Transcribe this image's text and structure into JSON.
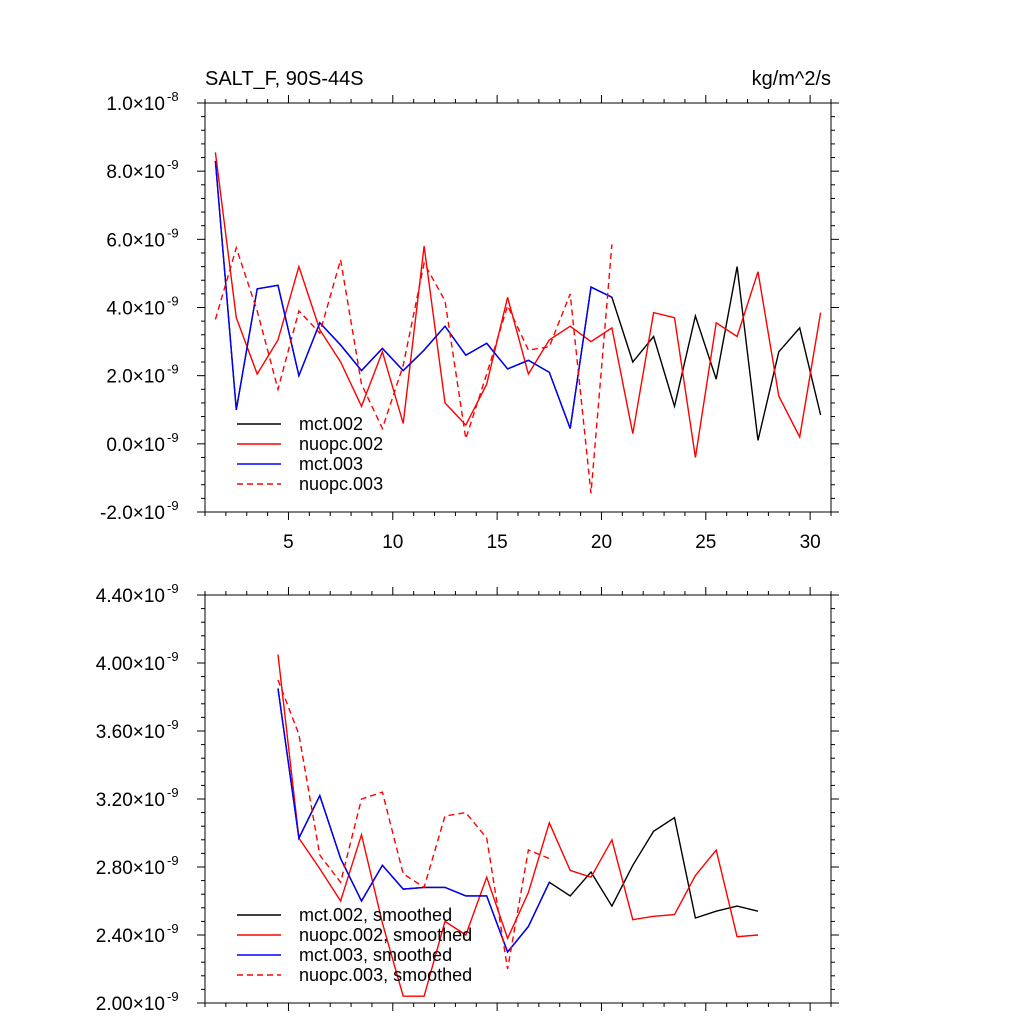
{
  "chart_data": [
    {
      "type": "line",
      "title": "SALT_F, 90S-44S",
      "units": "kg/m^2/s",
      "xlabel": "",
      "ylabel": "",
      "xlim": [
        1,
        31
      ],
      "ylim": [
        -2e-09,
        1e-08
      ],
      "xticks": [
        5,
        10,
        15,
        20,
        25,
        30
      ],
      "ytick_labels": [
        {
          "value": -2e-09,
          "mantissa": "-2.0",
          "exponent": "-9"
        },
        {
          "value": 0,
          "mantissa": "0.0",
          "exponent": "-9"
        },
        {
          "value": 2e-09,
          "mantissa": "2.0",
          "exponent": "-9"
        },
        {
          "value": 4e-09,
          "mantissa": "4.0",
          "exponent": "-9"
        },
        {
          "value": 6e-09,
          "mantissa": "6.0",
          "exponent": "-9"
        },
        {
          "value": 8e-09,
          "mantissa": "8.0",
          "exponent": "-9"
        },
        {
          "value": 1e-08,
          "mantissa": "1.0",
          "exponent": "-8"
        }
      ],
      "grid": false,
      "legend_position": "bottom-left",
      "series": [
        {
          "name": "mct.002",
          "color": "#000000",
          "dash": "solid",
          "x": [
            1.5,
            2.5,
            3.5,
            4.5,
            5.5,
            6.5,
            7.5,
            8.5,
            9.5,
            10.5,
            11.5,
            12.5,
            13.5,
            14.5,
            15.5,
            16.5,
            17.5,
            18.5,
            19.5,
            20.5,
            21.5,
            22.5,
            23.5,
            24.5,
            25.5,
            26.5,
            27.5,
            28.5,
            29.5,
            30.5
          ],
          "values": [
            8.3e-09,
            1e-09,
            4.55e-09,
            4.65e-09,
            2e-09,
            3.55e-09,
            2.9e-09,
            2.15e-09,
            2.8e-09,
            2.15e-09,
            2.75e-09,
            3.45e-09,
            2.6e-09,
            2.95e-09,
            2.2e-09,
            2.45e-09,
            2.1e-09,
            4.5e-10,
            4.6e-09,
            4.3e-09,
            2.4e-09,
            3.15e-09,
            1.1e-09,
            3.75e-09,
            1.9e-09,
            5.2e-09,
            1e-10,
            2.7e-09,
            3.4e-09,
            8.5e-10
          ]
        },
        {
          "name": "nuopc.002",
          "color": "#ff0000",
          "dash": "solid",
          "x": [
            1.5,
            2.5,
            3.5,
            4.5,
            5.5,
            6.5,
            7.5,
            8.5,
            9.5,
            10.5,
            11.5,
            12.5,
            13.5,
            14.5,
            15.5,
            16.5,
            17.5,
            18.5,
            19.5,
            20.5,
            21.5,
            22.5,
            23.5,
            24.5,
            25.5,
            26.5,
            27.5,
            28.5,
            29.5,
            30.5
          ],
          "values": [
            8.55e-09,
            3.7e-09,
            2.05e-09,
            3.05e-09,
            5.2e-09,
            3.35e-09,
            2.4e-09,
            1.1e-09,
            2.7e-09,
            6e-10,
            5.8e-09,
            1.2e-09,
            5.5e-10,
            1.75e-09,
            4.3e-09,
            2.05e-09,
            3.05e-09,
            3.45e-09,
            3e-09,
            3.4e-09,
            3e-10,
            3.85e-09,
            3.7e-09,
            -4e-10,
            3.55e-09,
            3.15e-09,
            5.05e-09,
            1.4e-09,
            2e-10,
            3.85e-09
          ]
        },
        {
          "name": "mct.003",
          "color": "#0000ff",
          "dash": "solid",
          "x": [
            1.5,
            2.5,
            3.5,
            4.5,
            5.5,
            6.5,
            7.5,
            8.5,
            9.5,
            10.5,
            11.5,
            12.5,
            13.5,
            14.5,
            15.5,
            16.5,
            17.5,
            18.5,
            19.5,
            20.5
          ],
          "values": [
            8.3e-09,
            1e-09,
            4.55e-09,
            4.65e-09,
            2e-09,
            3.55e-09,
            2.9e-09,
            2.15e-09,
            2.8e-09,
            2.15e-09,
            2.75e-09,
            3.45e-09,
            2.6e-09,
            2.95e-09,
            2.2e-09,
            2.45e-09,
            2.1e-09,
            4.5e-10,
            4.6e-09,
            4.3e-09
          ]
        },
        {
          "name": "nuopc.003",
          "color": "#ff0000",
          "dash": "dashed",
          "x": [
            1.5,
            2.5,
            3.5,
            4.5,
            5.5,
            6.5,
            7.5,
            8.5,
            9.5,
            10.5,
            11.5,
            12.5,
            13.5,
            14.5,
            15.5,
            16.5,
            17.5,
            18.5,
            19.5,
            20.5
          ],
          "values": [
            3.65e-09,
            5.75e-09,
            3.9e-09,
            1.6e-09,
            3.9e-09,
            3.25e-09,
            5.4e-09,
            1.75e-09,
            4.5e-10,
            2.3e-09,
            5.3e-09,
            4.2e-09,
            1.5e-10,
            2.05e-09,
            4.05e-09,
            2.75e-09,
            2.85e-09,
            4.4e-09,
            -1.45e-09,
            5.85e-09
          ]
        }
      ]
    },
    {
      "type": "line",
      "title": "",
      "xlabel": "",
      "ylabel": "",
      "xlim": [
        1,
        31
      ],
      "ylim": [
        2e-09,
        4.4e-09
      ],
      "xticks": [
        5,
        10,
        15,
        20,
        25,
        30
      ],
      "ytick_labels": [
        {
          "value": 2e-09,
          "mantissa": "2.00",
          "exponent": "-9"
        },
        {
          "value": 2.4e-09,
          "mantissa": "2.40",
          "exponent": "-9"
        },
        {
          "value": 2.8e-09,
          "mantissa": "2.80",
          "exponent": "-9"
        },
        {
          "value": 3.2e-09,
          "mantissa": "3.20",
          "exponent": "-9"
        },
        {
          "value": 3.6e-09,
          "mantissa": "3.60",
          "exponent": "-9"
        },
        {
          "value": 4e-09,
          "mantissa": "4.00",
          "exponent": "-9"
        },
        {
          "value": 4.4e-09,
          "mantissa": "4.40",
          "exponent": "-9"
        }
      ],
      "grid": false,
      "legend_position": "bottom-left",
      "series": [
        {
          "name": "mct.002, smoothed",
          "color": "#000000",
          "dash": "solid",
          "x": [
            4.5,
            5.5,
            6.5,
            7.5,
            8.5,
            9.5,
            10.5,
            11.5,
            12.5,
            13.5,
            14.5,
            15.5,
            16.5,
            17.5,
            18.5,
            19.5,
            20.5,
            21.5,
            22.5,
            23.5,
            24.5,
            25.5,
            26.5,
            27.5
          ],
          "values": [
            3.85e-09,
            2.97e-09,
            3.22e-09,
            2.85e-09,
            2.6e-09,
            2.81e-09,
            2.67e-09,
            2.68e-09,
            2.68e-09,
            2.63e-09,
            2.63e-09,
            2.3e-09,
            2.45e-09,
            2.71e-09,
            2.63e-09,
            2.77e-09,
            2.57e-09,
            2.81e-09,
            3.01e-09,
            3.09e-09,
            2.5e-09,
            2.54e-09,
            2.57e-09,
            2.54e-09
          ]
        },
        {
          "name": "nuopc.002, smoothed",
          "color": "#ff0000",
          "dash": "solid",
          "x": [
            4.5,
            5.5,
            6.5,
            7.5,
            8.5,
            9.5,
            10.5,
            11.5,
            12.5,
            13.5,
            14.5,
            15.5,
            16.5,
            17.5,
            18.5,
            19.5,
            20.5,
            21.5,
            22.5,
            23.5,
            24.5,
            25.5,
            26.5,
            27.5
          ],
          "values": [
            4.05e-09,
            2.97e-09,
            2.79e-09,
            2.6e-09,
            2.99e-09,
            2.47e-09,
            2.04e-09,
            2.04e-09,
            2.48e-09,
            2.4e-09,
            2.74e-09,
            2.38e-09,
            2.65e-09,
            3.06e-09,
            2.78e-09,
            2.74e-09,
            2.96e-09,
            2.49e-09,
            2.51e-09,
            2.52e-09,
            2.75e-09,
            2.9e-09,
            2.39e-09,
            2.4e-09
          ]
        },
        {
          "name": "mct.003, smoothed",
          "color": "#0000ff",
          "dash": "solid",
          "x": [
            4.5,
            5.5,
            6.5,
            7.5,
            8.5,
            9.5,
            10.5,
            11.5,
            12.5,
            13.5,
            14.5,
            15.5,
            16.5,
            17.5
          ],
          "values": [
            3.85e-09,
            2.97e-09,
            3.22e-09,
            2.85e-09,
            2.6e-09,
            2.81e-09,
            2.67e-09,
            2.68e-09,
            2.68e-09,
            2.63e-09,
            2.63e-09,
            2.3e-09,
            2.45e-09,
            2.71e-09
          ]
        },
        {
          "name": "nuopc.003, smoothed",
          "color": "#ff0000",
          "dash": "dashed",
          "x": [
            4.5,
            5.5,
            6.5,
            7.5,
            8.5,
            9.5,
            10.5,
            11.5,
            12.5,
            13.5,
            14.5,
            15.5,
            16.5,
            17.5
          ],
          "values": [
            3.9e-09,
            3.58e-09,
            2.87e-09,
            2.71e-09,
            3.2e-09,
            3.24e-09,
            2.76e-09,
            2.68e-09,
            3.1e-09,
            3.12e-09,
            2.97e-09,
            2.2e-09,
            2.9e-09,
            2.85e-09
          ]
        }
      ]
    }
  ]
}
